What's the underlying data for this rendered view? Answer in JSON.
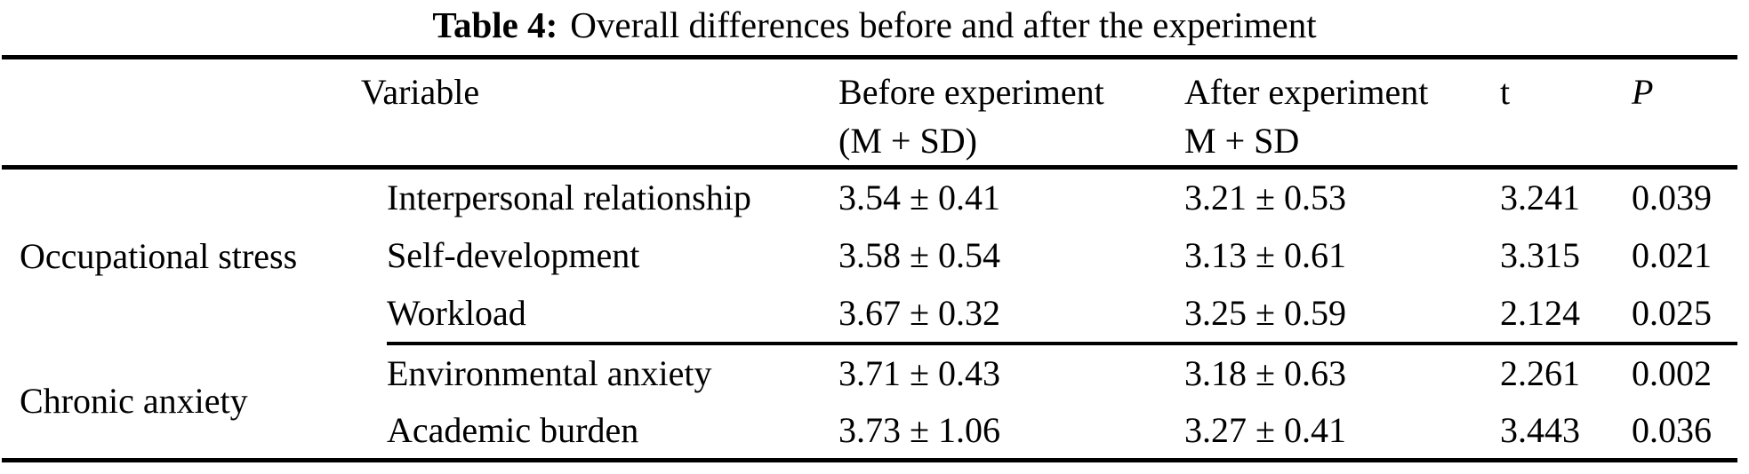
{
  "title": {
    "label": "Table 4:",
    "text": "Overall differences before and after the experiment"
  },
  "table": {
    "header": {
      "variable": "Variable",
      "before_line1": "Before experiment",
      "before_line2": "(M + SD)",
      "after_line1": "After experiment",
      "after_line2": "M + SD",
      "t": "t",
      "p": "P"
    },
    "groups": [
      {
        "category": "Occupational stress",
        "rows": [
          {
            "variable": "Interpersonal relationship",
            "before": "3.54 ± 0.41",
            "after": "3.21 ± 0.53",
            "t": "3.241",
            "p": "0.039"
          },
          {
            "variable": "Self-development",
            "before": "3.58 ± 0.54",
            "after": "3.13 ± 0.61",
            "t": "3.315",
            "p": "0.021"
          },
          {
            "variable": "Workload",
            "before": "3.67 ± 0.32",
            "after": "3.25 ± 0.59",
            "t": "2.124",
            "p": "0.025"
          }
        ]
      },
      {
        "category": "Chronic anxiety",
        "rows": [
          {
            "variable": "Environmental anxiety",
            "before": "3.71 ± 0.43",
            "after": "3.18 ± 0.63",
            "t": "2.261",
            "p": "0.002"
          },
          {
            "variable": "Academic burden",
            "before": "3.73 ± 1.06",
            "after": "3.27 ± 0.41",
            "t": "3.443",
            "p": "0.036"
          }
        ]
      }
    ]
  }
}
